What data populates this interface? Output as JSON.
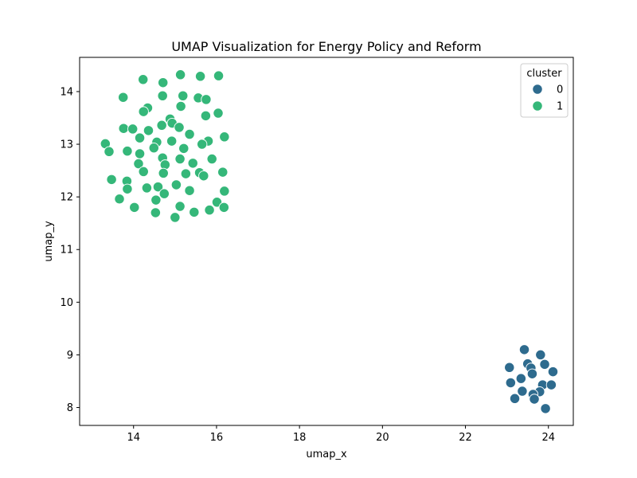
{
  "chart_data": {
    "type": "scatter",
    "title": "UMAP Visualization for Energy Policy and Reform",
    "xlabel": "umap_x",
    "ylabel": "umap_y",
    "xlim": [
      12.7,
      24.6
    ],
    "ylim": [
      7.66,
      14.65
    ],
    "x_ticks": [
      14,
      16,
      18,
      20,
      22,
      24
    ],
    "y_ticks": [
      8,
      9,
      10,
      11,
      12,
      13,
      14
    ],
    "grid": false,
    "legend": {
      "title": "cluster",
      "placement": "top-right",
      "entries": [
        {
          "label": "0",
          "color": "#2e6b8e"
        },
        {
          "label": "1",
          "color": "#35b779"
        }
      ]
    },
    "series": [
      {
        "name": "0",
        "color": "#2e6b8e",
        "points": [
          [
            23.42,
            9.1
          ],
          [
            23.81,
            9.0
          ],
          [
            23.5,
            8.83
          ],
          [
            23.91,
            8.82
          ],
          [
            23.06,
            8.76
          ],
          [
            23.58,
            8.75
          ],
          [
            24.11,
            8.68
          ],
          [
            23.61,
            8.64
          ],
          [
            23.34,
            8.55
          ],
          [
            23.09,
            8.47
          ],
          [
            23.86,
            8.43
          ],
          [
            24.07,
            8.43
          ],
          [
            23.37,
            8.31
          ],
          [
            23.79,
            8.3
          ],
          [
            23.63,
            8.25
          ],
          [
            23.19,
            8.17
          ],
          [
            23.66,
            8.16
          ],
          [
            23.93,
            7.98
          ]
        ]
      },
      {
        "name": "1",
        "color": "#35b779",
        "points": [
          [
            15.13,
            14.32
          ],
          [
            16.05,
            14.3
          ],
          [
            15.61,
            14.29
          ],
          [
            14.23,
            14.23
          ],
          [
            14.71,
            14.17
          ],
          [
            13.75,
            13.89
          ],
          [
            14.7,
            13.92
          ],
          [
            15.19,
            13.92
          ],
          [
            15.56,
            13.88
          ],
          [
            15.75,
            13.85
          ],
          [
            14.34,
            13.69
          ],
          [
            15.14,
            13.72
          ],
          [
            14.24,
            13.62
          ],
          [
            16.04,
            13.59
          ],
          [
            15.74,
            13.54
          ],
          [
            14.88,
            13.48
          ],
          [
            14.93,
            13.4
          ],
          [
            14.68,
            13.36
          ],
          [
            15.1,
            13.32
          ],
          [
            13.76,
            13.3
          ],
          [
            13.98,
            13.29
          ],
          [
            14.36,
            13.26
          ],
          [
            15.35,
            13.19
          ],
          [
            16.19,
            13.14
          ],
          [
            14.15,
            13.12
          ],
          [
            14.56,
            13.04
          ],
          [
            14.92,
            13.06
          ],
          [
            15.8,
            13.06
          ],
          [
            13.32,
            13.01
          ],
          [
            15.65,
            13.0
          ],
          [
            14.49,
            12.93
          ],
          [
            15.21,
            12.92
          ],
          [
            13.41,
            12.86
          ],
          [
            13.85,
            12.87
          ],
          [
            14.15,
            12.82
          ],
          [
            14.7,
            12.74
          ],
          [
            15.12,
            12.72
          ],
          [
            15.89,
            12.72
          ],
          [
            14.12,
            12.63
          ],
          [
            14.76,
            12.61
          ],
          [
            15.43,
            12.64
          ],
          [
            14.24,
            12.48
          ],
          [
            14.72,
            12.45
          ],
          [
            15.26,
            12.44
          ],
          [
            15.59,
            12.46
          ],
          [
            16.15,
            12.47
          ],
          [
            15.69,
            12.4
          ],
          [
            13.47,
            12.33
          ],
          [
            13.84,
            12.3
          ],
          [
            15.03,
            12.23
          ],
          [
            14.32,
            12.17
          ],
          [
            14.59,
            12.19
          ],
          [
            13.85,
            12.15
          ],
          [
            15.35,
            12.12
          ],
          [
            16.19,
            12.11
          ],
          [
            14.74,
            12.06
          ],
          [
            13.66,
            11.96
          ],
          [
            14.54,
            11.94
          ],
          [
            16.01,
            11.9
          ],
          [
            14.02,
            11.8
          ],
          [
            15.12,
            11.82
          ],
          [
            15.83,
            11.75
          ],
          [
            16.18,
            11.8
          ],
          [
            14.53,
            11.7
          ],
          [
            15.46,
            11.71
          ],
          [
            15.0,
            11.61
          ]
        ]
      }
    ]
  }
}
